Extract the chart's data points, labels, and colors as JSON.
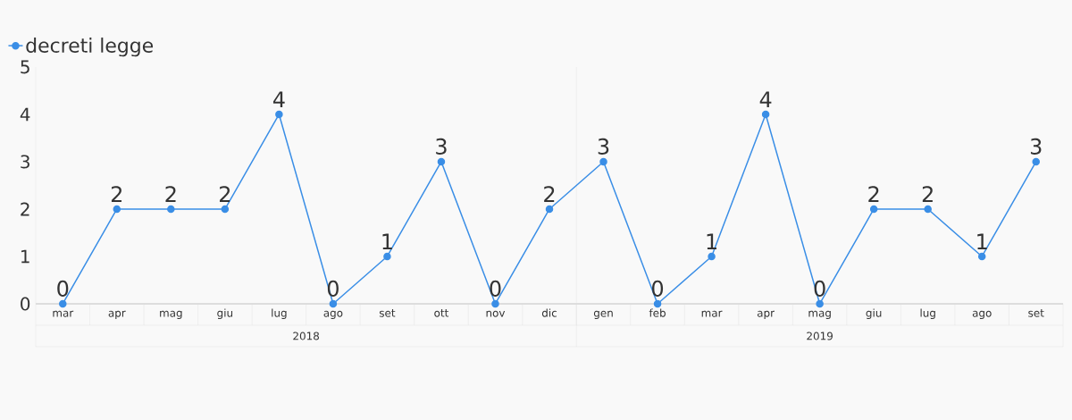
{
  "chart_data": {
    "type": "line",
    "categories": [
      "mar",
      "apr",
      "mag",
      "giu",
      "lug",
      "ago",
      "set",
      "ott",
      "nov",
      "dic",
      "gen",
      "feb",
      "mar",
      "apr",
      "mag",
      "giu",
      "lug",
      "ago",
      "set"
    ],
    "series": [
      {
        "name": "decreti legge",
        "color": "#3a8ee6",
        "values": [
          0,
          2,
          2,
          2,
          4,
          0,
          1,
          3,
          0,
          2,
          3,
          0,
          1,
          4,
          0,
          2,
          2,
          1,
          3
        ]
      }
    ],
    "ylim": [
      0,
      5
    ],
    "yticks": [
      0,
      1,
      2,
      3,
      4,
      5
    ],
    "annotations": [
      "2018",
      "2019"
    ],
    "data_labels": true,
    "legend": "top left",
    "marker": "circle",
    "line_style": "solid",
    "grid": false
  }
}
